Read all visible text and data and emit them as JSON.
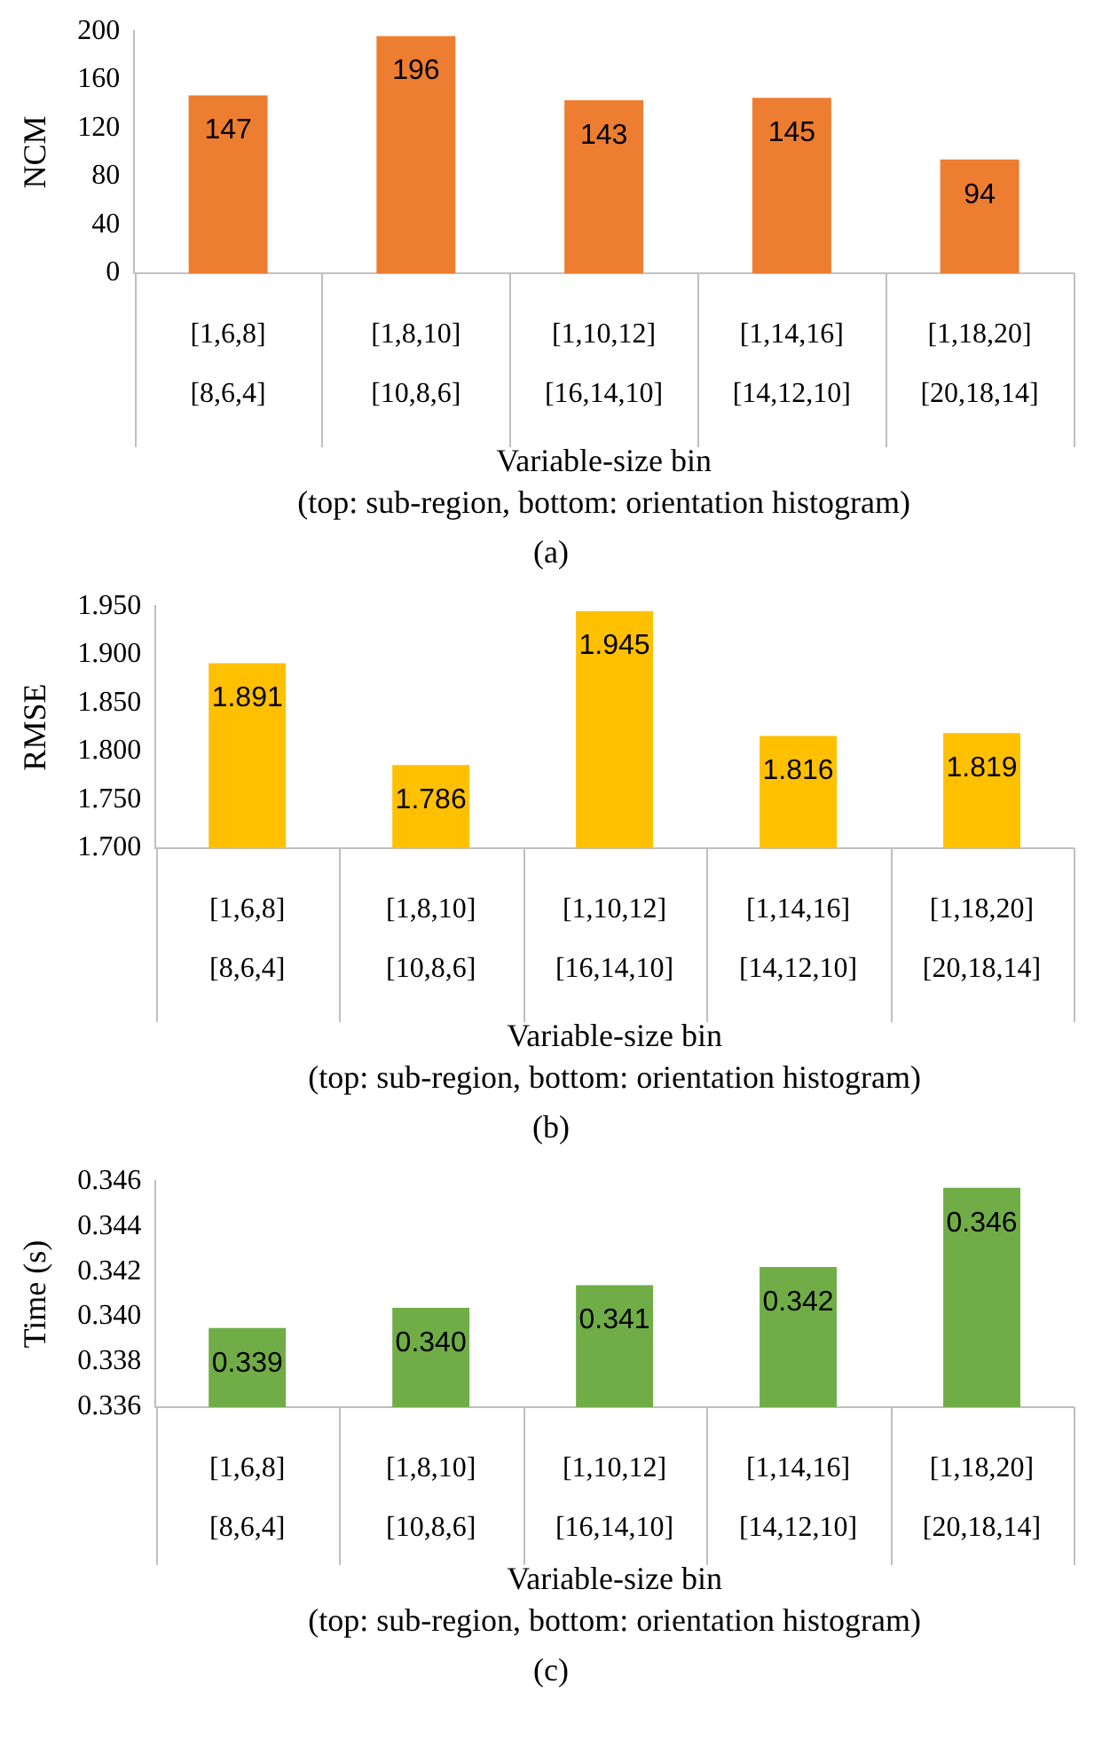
{
  "chart_data": [
    {
      "type": "bar",
      "categories": [
        "[1,6,8]\n[8,6,4]",
        "[1,8,10]\n[10,8,6]",
        "[1,10,12]\n[16,14,10]",
        "[1,14,16]\n[14,12,10]",
        "[1,18,20]\n[20,18,14]"
      ],
      "values": [
        147,
        196,
        143,
        145,
        94
      ],
      "color": "#ed7d31",
      "data_labels": true,
      "ylabel": "NCM",
      "xlabel": "Variable-size bin\n(top: sub-region, bottom: orientation histogram)",
      "ylim": [
        0,
        200
      ],
      "yticks": [
        0,
        40,
        80,
        120,
        160,
        200
      ],
      "grid": false,
      "legend": false,
      "annotations": [
        "(a)"
      ]
    },
    {
      "type": "bar",
      "categories": [
        "[1,6,8]\n[8,6,4]",
        "[1,8,10]\n[10,8,6]",
        "[1,10,12]\n[16,14,10]",
        "[1,14,16]\n[14,12,10]",
        "[1,18,20]\n[20,18,14]"
      ],
      "values": [
        1.891,
        1.786,
        1.945,
        1.816,
        1.819
      ],
      "color": "#ffc000",
      "data_labels": true,
      "ylabel": "RMSE",
      "xlabel": "Variable-size bin\n(top: sub-region, bottom: orientation histogram)",
      "ylim": [
        1.7,
        1.95
      ],
      "yticks": [
        {
          "value": 1.7,
          "label": "1.700"
        },
        {
          "value": 1.75,
          "label": "1.750"
        },
        {
          "value": 1.8,
          "label": "1.800"
        },
        {
          "value": 1.85,
          "label": "1.850"
        },
        {
          "value": 1.9,
          "label": "1.900"
        },
        {
          "value": 1.95,
          "label": "1.950"
        }
      ],
      "grid": false,
      "legend": false,
      "annotations": [
        "(b)"
      ]
    },
    {
      "type": "bar",
      "categories": [
        "[1,6,8]\n[8,6,4]",
        "[1,8,10]\n[10,8,6]",
        "[1,10,12]\n[16,14,10]",
        "[1,14,16]\n[14,12,10]",
        "[1,18,20]\n[20,18,14]"
      ],
      "values": [
        0.3395,
        0.3404,
        0.3414,
        0.3422,
        0.3457
      ],
      "value_labels": [
        "0.339",
        "0.340",
        "0.341",
        "0.342",
        "0.346"
      ],
      "color": "#70ad47",
      "ylabel": "Time (s)",
      "xlabel": "Variable-size bin\n(top: sub-region, bottom: orientation histogram)",
      "ylim": [
        0.336,
        0.346
      ],
      "yticks": [
        0.336,
        0.338,
        {
          "value": 0.34,
          "label": "0.340"
        },
        0.342,
        0.344,
        0.346
      ],
      "grid": false,
      "legend": false,
      "annotations": [
        "(c)"
      ]
    }
  ]
}
